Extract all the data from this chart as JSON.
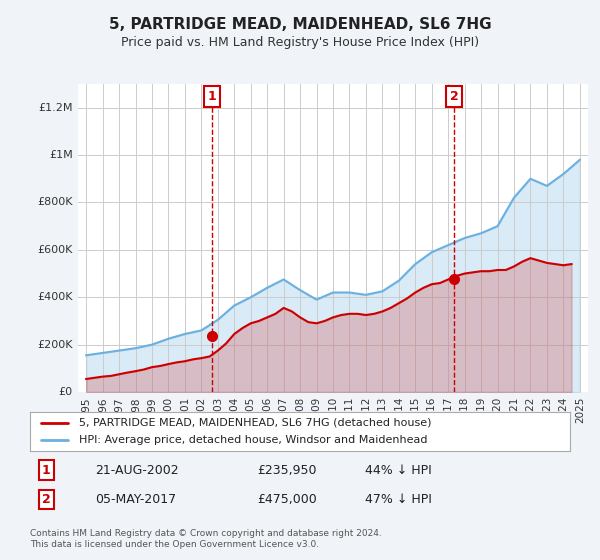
{
  "title": "5, PARTRIDGE MEAD, MAIDENHEAD, SL6 7HG",
  "subtitle": "Price paid vs. HM Land Registry's House Price Index (HPI)",
  "legend_line1": "5, PARTRIDGE MEAD, MAIDENHEAD, SL6 7HG (detached house)",
  "legend_line2": "HPI: Average price, detached house, Windsor and Maidenhead",
  "annotation1_label": "1",
  "annotation1_date": "21-AUG-2002",
  "annotation1_price": "£235,950",
  "annotation1_hpi": "44% ↓ HPI",
  "annotation2_label": "2",
  "annotation2_date": "05-MAY-2017",
  "annotation2_price": "£475,000",
  "annotation2_hpi": "47% ↓ HPI",
  "footer": "Contains HM Land Registry data © Crown copyright and database right 2024.\nThis data is licensed under the Open Government Licence v3.0.",
  "hpi_color": "#6ab0e0",
  "price_color": "#cc0000",
  "annotation_color": "#cc0000",
  "background_color": "#f0f4f8",
  "plot_bg_color": "#ffffff",
  "years_x": [
    1995,
    1996,
    1997,
    1998,
    1999,
    2000,
    2001,
    2002,
    2003,
    2004,
    2005,
    2006,
    2007,
    2008,
    2009,
    2010,
    2011,
    2012,
    2013,
    2014,
    2015,
    2016,
    2017,
    2018,
    2019,
    2020,
    2021,
    2022,
    2023,
    2024,
    2025
  ],
  "hpi_values": [
    155000,
    165000,
    175000,
    185000,
    200000,
    225000,
    245000,
    260000,
    305000,
    365000,
    400000,
    440000,
    475000,
    430000,
    390000,
    420000,
    420000,
    410000,
    425000,
    470000,
    540000,
    590000,
    620000,
    650000,
    670000,
    700000,
    820000,
    900000,
    870000,
    920000,
    980000
  ],
  "price_values_x": [
    1995.0,
    1995.5,
    1996.0,
    1996.5,
    1997.0,
    1997.5,
    1998.0,
    1998.5,
    1999.0,
    1999.5,
    2000.0,
    2000.5,
    2001.0,
    2001.5,
    2002.0,
    2002.5,
    2003.0,
    2003.5,
    2004.0,
    2004.5,
    2005.0,
    2005.5,
    2006.0,
    2006.5,
    2007.0,
    2007.5,
    2008.0,
    2008.5,
    2009.0,
    2009.5,
    2010.0,
    2010.5,
    2011.0,
    2011.5,
    2012.0,
    2012.5,
    2013.0,
    2013.5,
    2014.0,
    2014.5,
    2015.0,
    2015.5,
    2016.0,
    2016.5,
    2017.0,
    2017.5,
    2018.0,
    2018.5,
    2019.0,
    2019.5,
    2020.0,
    2020.5,
    2021.0,
    2021.5,
    2022.0,
    2022.5,
    2023.0,
    2023.5,
    2024.0,
    2024.5
  ],
  "price_values_y": [
    55000,
    60000,
    65000,
    68000,
    75000,
    82000,
    88000,
    95000,
    105000,
    110000,
    118000,
    125000,
    130000,
    138000,
    143000,
    150000,
    175000,
    205000,
    245000,
    270000,
    290000,
    300000,
    315000,
    330000,
    355000,
    340000,
    315000,
    295000,
    290000,
    300000,
    315000,
    325000,
    330000,
    330000,
    325000,
    330000,
    340000,
    355000,
    375000,
    395000,
    420000,
    440000,
    455000,
    460000,
    475000,
    490000,
    500000,
    505000,
    510000,
    510000,
    515000,
    515000,
    530000,
    550000,
    565000,
    555000,
    545000,
    540000,
    535000,
    540000
  ],
  "sale1_x": 2002.65,
  "sale1_y": 235950,
  "sale2_x": 2017.35,
  "sale2_y": 475000,
  "xmin": 1994.5,
  "xmax": 2025.5,
  "ymin": 0,
  "ymax": 1300000,
  "yticks": [
    0,
    200000,
    400000,
    600000,
    800000,
    1000000,
    1200000
  ],
  "ytick_labels": [
    "£0",
    "£200K",
    "£400K",
    "£600K",
    "£800K",
    "£1M",
    "£1.2M"
  ]
}
